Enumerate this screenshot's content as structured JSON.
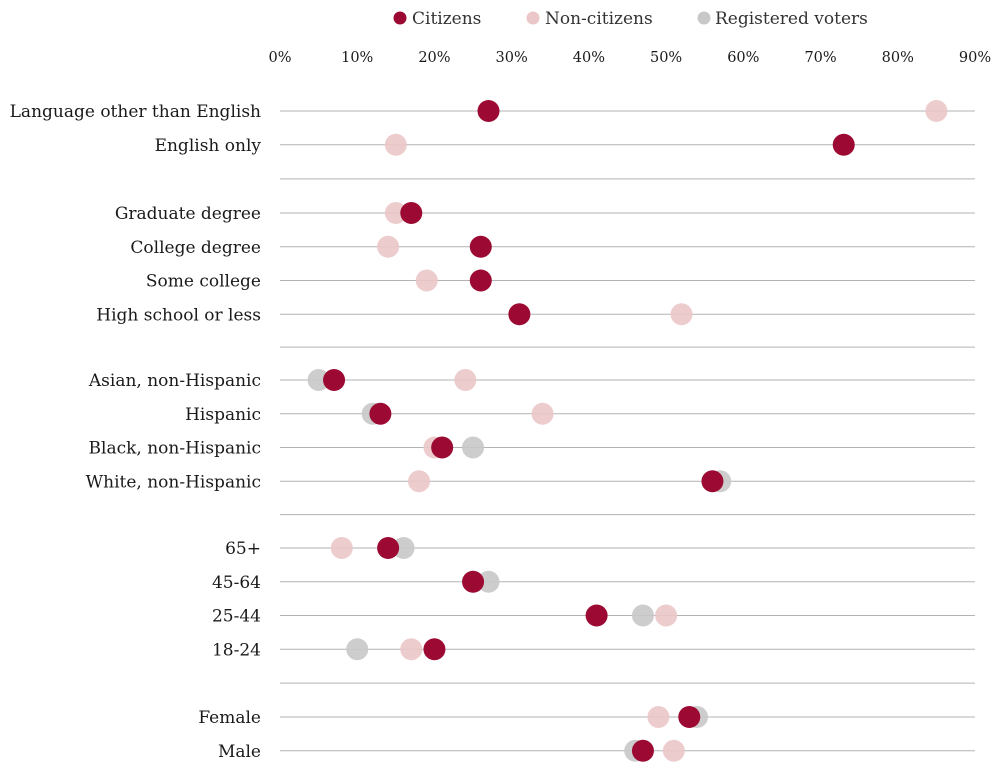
{
  "chart_data": {
    "type": "scatter",
    "variant": "dot-plot",
    "title": "",
    "xlabel": "",
    "ylabel": "",
    "xlim": [
      0,
      90
    ],
    "x_ticks": [
      "0%",
      "10%",
      "20%",
      "30%",
      "40%",
      "50%",
      "60%",
      "70%",
      "80%",
      "90%"
    ],
    "x_tick_values": [
      0,
      10,
      20,
      30,
      40,
      50,
      60,
      70,
      80,
      90
    ],
    "legend_position": "top",
    "series": [
      {
        "name": "Citizens",
        "color": "#9c0a33"
      },
      {
        "name": "Non-citizens",
        "color": "#ebc7c9"
      },
      {
        "name": "Registered voters",
        "color": "#c8c8c8"
      }
    ],
    "groups": [
      {
        "rows": [
          {
            "label": "Language other than English",
            "citizens": 27,
            "non_citizens": 85,
            "registered_voters": null
          },
          {
            "label": "English only",
            "citizens": 73,
            "non_citizens": 15,
            "registered_voters": null
          }
        ]
      },
      {
        "rows": [
          {
            "label": "Graduate degree",
            "citizens": 17,
            "non_citizens": 15,
            "registered_voters": null
          },
          {
            "label": "College degree",
            "citizens": 26,
            "non_citizens": 14,
            "registered_voters": null
          },
          {
            "label": "Some college",
            "citizens": 26,
            "non_citizens": 19,
            "registered_voters": null
          },
          {
            "label": "High school or less",
            "citizens": 31,
            "non_citizens": 52,
            "registered_voters": null
          }
        ]
      },
      {
        "rows": [
          {
            "label": "Asian, non-Hispanic",
            "citizens": 7,
            "non_citizens": 24,
            "registered_voters": 5
          },
          {
            "label": "Hispanic",
            "citizens": 13,
            "non_citizens": 34,
            "registered_voters": 12
          },
          {
            "label": "Black, non-Hispanic",
            "citizens": 21,
            "non_citizens": 20,
            "registered_voters": 25
          },
          {
            "label": "White, non-Hispanic",
            "citizens": 56,
            "non_citizens": 18,
            "registered_voters": 57
          }
        ]
      },
      {
        "rows": [
          {
            "label": "65+",
            "citizens": 14,
            "non_citizens": 8,
            "registered_voters": 16
          },
          {
            "label": "45-64",
            "citizens": 25,
            "non_citizens": 25,
            "registered_voters": 27
          },
          {
            "label": "25-44",
            "citizens": 41,
            "non_citizens": 50,
            "registered_voters": 47
          },
          {
            "label": "18-24",
            "citizens": 20,
            "non_citizens": 17,
            "registered_voters": 10
          }
        ]
      },
      {
        "rows": [
          {
            "label": "Female",
            "citizens": 53,
            "non_citizens": 49,
            "registered_voters": 54
          },
          {
            "label": "Male",
            "citizens": 47,
            "non_citizens": 51,
            "registered_voters": 46
          }
        ]
      }
    ]
  }
}
